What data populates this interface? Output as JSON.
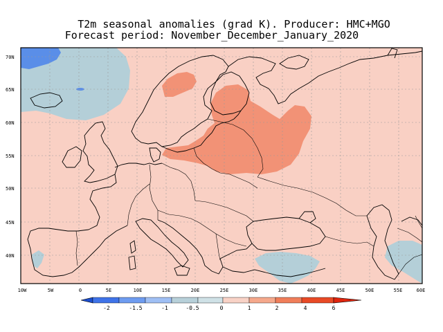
{
  "title": "T2m seasonal anomalies (grad K). Producer: HMC+MGO",
  "subtitle": "Forecast period:  November_December_January_2020",
  "lat_labels": [
    "70N",
    "65N",
    "60N",
    "55N",
    "50N",
    "45N",
    "40N"
  ],
  "lon_labels": [
    "10W",
    "5W",
    "0",
    "5E",
    "10E",
    "15E",
    "20E",
    "25E",
    "30E",
    "35E",
    "40E",
    "45E",
    "50E",
    "55E",
    "60E"
  ],
  "colorbar": {
    "labels": [
      "-2",
      "-1.5",
      "-1",
      "-0.5",
      "0",
      "1",
      "2",
      "4",
      "6"
    ],
    "colors": [
      "#1c4fd0",
      "#3f73e8",
      "#6e9cf0",
      "#9fbff4",
      "#b7d0d9",
      "#f8d2c6",
      "#f5a88c",
      "#f07e5a",
      "#e84a26",
      "#e0250e"
    ]
  },
  "map_colors": {
    "base": "#f9d0c4",
    "warm": "#f29276",
    "cool": "#b4cfd8",
    "cold": "#5a8ee8"
  }
}
